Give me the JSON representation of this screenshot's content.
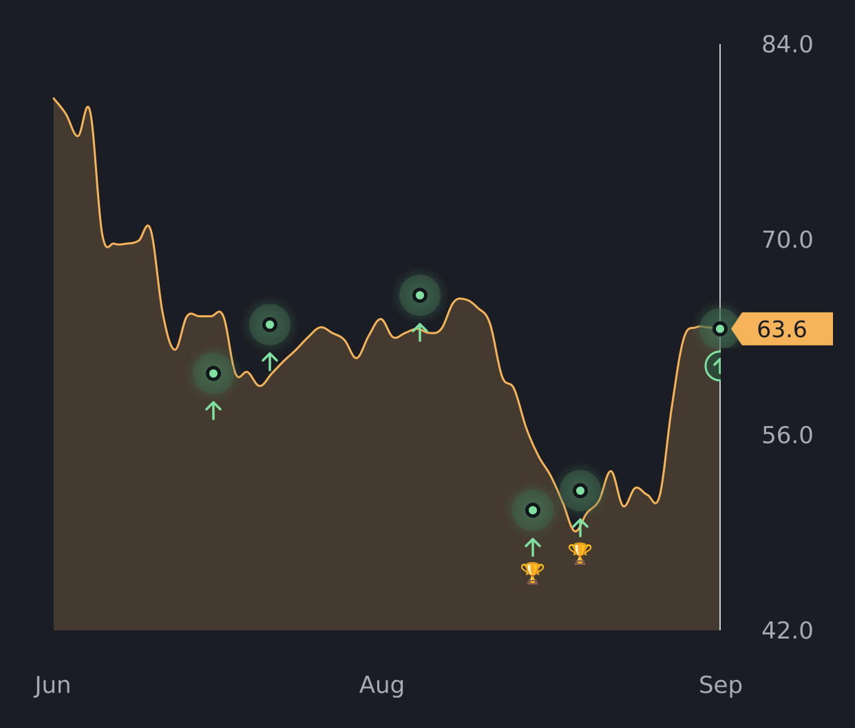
{
  "chart_data": {
    "type": "area",
    "title": "",
    "xlabel": "",
    "ylabel": "",
    "x_tick_labels": [
      "Jun",
      "Aug",
      "Sep"
    ],
    "y_tick_labels": [
      "84.0",
      "70.0",
      "56.0",
      "42.0"
    ],
    "y_ticks": [
      84.0,
      70.0,
      56.0,
      42.0
    ],
    "ylim": [
      42.0,
      84.0
    ],
    "grid": false,
    "legend": "none",
    "current_value_label": "63.6",
    "colors": {
      "line": "#f5b35a",
      "area": "#443a2f",
      "marker": "#7fe0a0",
      "background": "#1a1d24",
      "label_badge": "#f5b35a"
    },
    "series": [
      {
        "values": [
          80.1,
          79.0,
          77.4,
          79.2,
          70.4,
          69.7,
          69.7,
          69.9,
          70.7,
          64.7,
          62.1,
          64.5,
          64.5,
          64.5,
          64.5,
          60.4,
          60.5,
          59.5,
          60.4,
          61.3,
          62.1,
          63.0,
          63.7,
          63.3,
          62.8,
          61.5,
          63.1,
          64.3,
          63.0,
          63.3,
          63.6,
          63.3,
          63.6,
          65.5,
          65.7,
          65.1,
          64.0,
          60.2,
          59.3,
          56.5,
          54.5,
          53.1,
          51.2,
          49.1,
          50.4,
          51.3,
          53.4,
          50.9,
          52.2,
          51.7,
          51.6,
          57.9,
          62.9,
          63.7,
          63.7,
          63.6
        ]
      }
    ],
    "markers": [
      {
        "value": 60.4,
        "icon": "arrow-up-icon",
        "trophy": false
      },
      {
        "value": 63.9,
        "icon": "arrow-up-icon",
        "trophy": false
      },
      {
        "value": 66.0,
        "icon": "arrow-up-icon",
        "trophy": false
      },
      {
        "value": 50.6,
        "icon": "arrow-up-icon",
        "trophy": true
      },
      {
        "value": 52.0,
        "icon": "arrow-up-icon",
        "trophy": true
      },
      {
        "value": 63.6,
        "icon": "arrow-up-icon",
        "trophy": false
      }
    ],
    "trophy_icon": "trophy-icon"
  }
}
